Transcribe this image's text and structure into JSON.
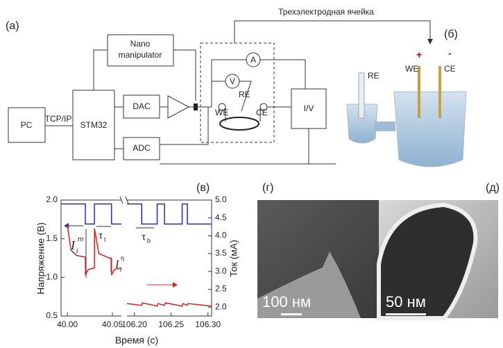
{
  "diagram": {
    "panel_label": "(a)",
    "cell_label": "Трехэлектродная ячейка",
    "blocks": {
      "pc": "PC",
      "stm32": "STM32",
      "nano": [
        "Nano",
        "manipulator"
      ],
      "dac": "DAC",
      "adc": "ADC",
      "iv": "I/V"
    },
    "link_label": "TCP/IP",
    "meters": [
      "A",
      "V"
    ],
    "electrodes": [
      "RE",
      "WE",
      "CE"
    ]
  },
  "photo": {
    "panel_label": "(б)",
    "labels": [
      "RE",
      "WE",
      "CE"
    ],
    "polarity": [
      "+",
      "-"
    ]
  },
  "chart_panel_label": "(в)",
  "chart_data": [
    {
      "type": "line",
      "xlabel": "Время (с)",
      "ylabel": "Напряжение (В)",
      "xlim": [
        39.993,
        40.06
      ],
      "xticks": [
        {
          "value": 40.0,
          "label": "40.00"
        },
        {
          "value": 40.05,
          "label": "40.05"
        }
      ],
      "ylim": [
        0.5,
        2.0
      ],
      "yticks": [
        0.5,
        {
          "value": 1.0,
          "label": "1.0"
        },
        1.5,
        {
          "value": 2.0,
          "label": "2.0"
        }
      ],
      "y2lim": [
        1.75,
        5.0
      ],
      "series": [
        {
          "color": "#2a2ab8",
          "x": [
            39.993,
            40.02,
            40.02,
            40.03,
            40.03,
            40.049,
            40.049,
            40.06
          ],
          "values": [
            1.95,
            1.95,
            1.69,
            1.69,
            1.95,
            1.95,
            1.69,
            1.69
          ]
        },
        {
          "color": "#d42020",
          "axis": "y2",
          "x": [
            40.0,
            40.004,
            40.01,
            40.02,
            40.0201,
            40.023,
            40.03,
            40.0301,
            40.035,
            40.049,
            40.0491,
            40.052,
            40.06
          ],
          "values": [
            4.3,
            3.6,
            3.45,
            3.4,
            2.9,
            3.05,
            3.1,
            4.2,
            3.5,
            3.35,
            2.9,
            3.05,
            3.1
          ]
        }
      ],
      "annotations": [
        {
          "base": "I",
          "sub": "i",
          "sup": "m"
        },
        {
          "base": "τ",
          "sub": "t"
        },
        {
          "base": "I",
          "sub": "i",
          "sup": "η"
        }
      ]
    },
    {
      "type": "line",
      "y2label": "Ток (мА)",
      "xlim": [
        106.19,
        106.305
      ],
      "xticks": [
        {
          "value": 106.2,
          "label": "106.20"
        },
        {
          "value": 106.25,
          "label": "106.25"
        },
        {
          "value": 106.3,
          "label": "106.30"
        }
      ],
      "ylim": [
        0.5,
        2.0
      ],
      "y2lim": [
        1.75,
        5.0
      ],
      "y2ticks": [
        {
          "value": 2.0,
          "label": "2.0"
        },
        2.5,
        {
          "value": 3.0,
          "label": "3.0"
        },
        3.5,
        {
          "value": 4.0,
          "label": "4.0"
        },
        4.5,
        {
          "value": 5.0,
          "label": "5.0"
        }
      ],
      "series": [
        {
          "color": "#2a2ab8",
          "x": [
            106.19,
            106.21,
            106.21,
            106.231,
            106.231,
            106.241,
            106.241,
            106.265,
            106.265,
            106.272,
            106.272,
            106.305
          ],
          "values": [
            1.95,
            1.95,
            1.69,
            1.69,
            1.95,
            1.95,
            1.69,
            1.69,
            1.95,
            1.95,
            1.69,
            1.69
          ]
        },
        {
          "color": "#d42020",
          "axis": "y2",
          "x": [
            106.19,
            106.21,
            106.211,
            106.231,
            106.232,
            106.241,
            106.242,
            106.265,
            106.266,
            106.272,
            106.273,
            106.305
          ],
          "values": [
            2.1,
            2.05,
            2.12,
            2.03,
            2.1,
            2.05,
            2.12,
            2.03,
            2.1,
            2.05,
            2.1,
            2.03
          ]
        }
      ],
      "annotations": [
        {
          "base": "τ",
          "sub": "b"
        }
      ]
    }
  ],
  "sem": [
    {
      "panel_label": "(г)",
      "scale": "100 нм"
    },
    {
      "panel_label": "(д)",
      "scale": "50 нм"
    }
  ]
}
